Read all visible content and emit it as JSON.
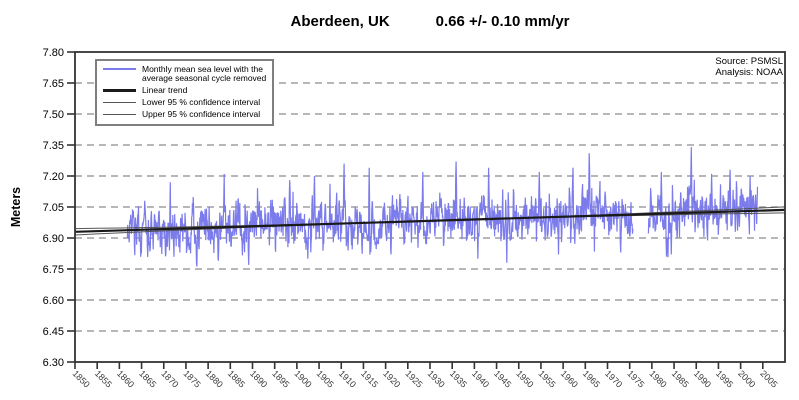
{
  "title": {
    "station": "Aberdeen, UK",
    "rate": "0.66 +/- 0.10 mm/yr"
  },
  "source": {
    "line1": "Source: PSMSL",
    "line2": "Analysis: NOAA"
  },
  "legend": {
    "items": [
      {
        "line1": "Monthly mean sea level with the",
        "line2": "average seasonal cycle removed",
        "swatch": "blue-line"
      },
      {
        "line1": "Linear trend",
        "swatch": "thick-dark-line"
      },
      {
        "line1": "Lower 95 % confidence interval",
        "swatch": "thin-line"
      },
      {
        "line1": "Upper 95 % confidence interval",
        "swatch": "thin-line"
      }
    ]
  },
  "chart_data": {
    "type": "line",
    "title": "Aberdeen, UK",
    "subtitle": "0.66 +/- 0.10 mm/yr",
    "ylabel": "Meters",
    "xlabel": "",
    "ylim": [
      6.3,
      7.8
    ],
    "yticks": [
      "6.30",
      "6.45",
      "6.60",
      "6.75",
      "6.90",
      "7.05",
      "7.20",
      "7.35",
      "7.50",
      "7.65",
      "7.80"
    ],
    "xlim": [
      1850,
      2010
    ],
    "xticks": [
      1850,
      1855,
      1860,
      1865,
      1870,
      1875,
      1880,
      1885,
      1890,
      1895,
      1900,
      1905,
      1910,
      1915,
      1920,
      1925,
      1930,
      1935,
      1940,
      1945,
      1950,
      1955,
      1960,
      1965,
      1970,
      1975,
      1980,
      1985,
      1990,
      1995,
      2000,
      2005
    ],
    "grid": "horizontal-dashed",
    "grid_color": "#8c8c8c",
    "legend_position": "top-left",
    "trend_mm_per_yr": 0.66,
    "trend_uncertainty_mm_per_yr": 0.1,
    "series": [
      {
        "name": "Monthly mean sea level with the average seasonal cycle removed",
        "type": "monthly-noisy",
        "color": "#7b7bec",
        "start_year": 1861.8,
        "end_year": 2003.8,
        "gaps": [
          [
            1975.8,
            1979.2
          ]
        ],
        "noise_std_m": 0.05,
        "ar1": 0.45,
        "seed": 20070606,
        "min_m": 6.757,
        "max_m": 7.343,
        "notable_points": [
          {
            "year": 1871.5,
            "value": 7.17
          },
          {
            "year": 1882.3,
            "value": 6.79
          },
          {
            "year": 1883.6,
            "value": 7.21
          },
          {
            "year": 1889.1,
            "value": 6.77
          },
          {
            "year": 1898.4,
            "value": 7.18
          },
          {
            "year": 1902.5,
            "value": 6.8
          },
          {
            "year": 1904.0,
            "value": 7.2
          },
          {
            "year": 1910.6,
            "value": 7.26
          },
          {
            "year": 1916.3,
            "value": 7.24
          },
          {
            "year": 1921.2,
            "value": 6.82
          },
          {
            "year": 1928.4,
            "value": 7.22
          },
          {
            "year": 1935.9,
            "value": 7.27
          },
          {
            "year": 1940.8,
            "value": 6.8
          },
          {
            "year": 1943.2,
            "value": 7.24
          },
          {
            "year": 1947.3,
            "value": 6.78
          },
          {
            "year": 1954.6,
            "value": 7.22
          },
          {
            "year": 1959.0,
            "value": 6.82
          },
          {
            "year": 1962.2,
            "value": 7.24
          },
          {
            "year": 1965.9,
            "value": 7.31
          },
          {
            "year": 1973.0,
            "value": 6.83
          },
          {
            "year": 1982.1,
            "value": 7.22
          },
          {
            "year": 1983.3,
            "value": 6.81
          },
          {
            "year": 1988.9,
            "value": 7.34
          },
          {
            "year": 1993.5,
            "value": 7.21
          },
          {
            "year": 1997.6,
            "value": 7.23
          },
          {
            "year": 2002.1,
            "value": 7.2
          }
        ]
      },
      {
        "name": "Linear trend",
        "type": "trend",
        "color": "#1a1a1a",
        "width": 2.2,
        "x": [
          1850,
          2010
        ],
        "y": [
          6.93,
          7.036
        ]
      },
      {
        "name": "Lower 95 % confidence interval",
        "type": "ci",
        "color": "#555555",
        "width": 1,
        "offset_at_edge_m": -0.015,
        "center_year": 1931,
        "half_span_years": 80
      },
      {
        "name": "Upper 95 % confidence interval",
        "type": "ci",
        "color": "#555555",
        "width": 1,
        "offset_at_edge_m": 0.015,
        "center_year": 1931,
        "half_span_years": 80
      }
    ],
    "source_lines": [
      "Source: PSMSL",
      "Analysis: NOAA"
    ]
  }
}
